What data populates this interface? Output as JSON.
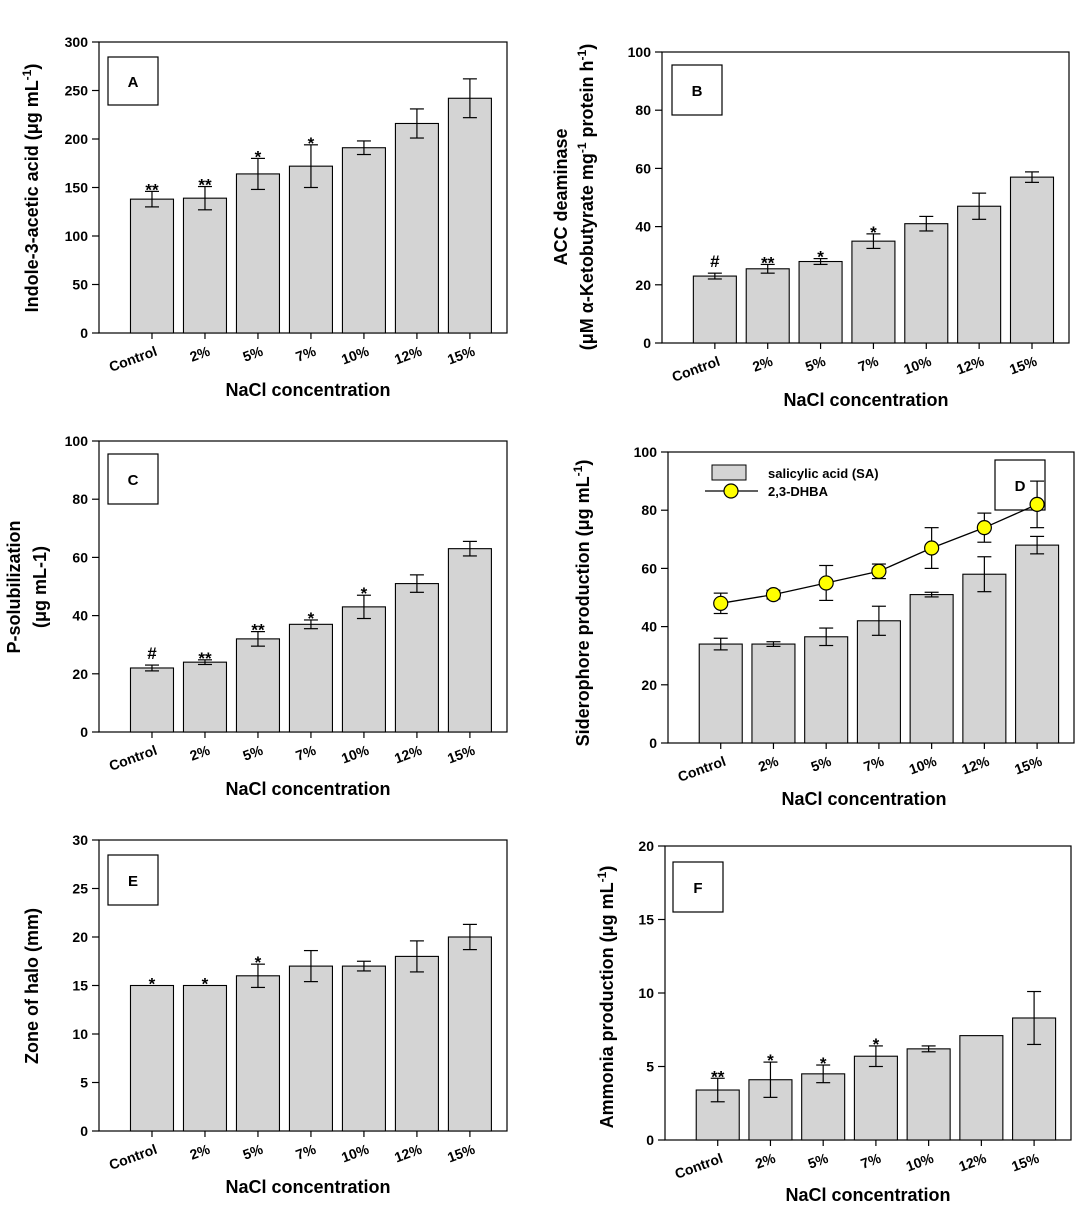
{
  "figure": {
    "categories": [
      "Control",
      "2%",
      "5%",
      "7%",
      "10%",
      "12%",
      "15%"
    ],
    "xlabel": "NaCl concentration"
  },
  "colors": {
    "bar_fill": "#d4d4d4",
    "bar_stroke": "#000000",
    "marker_fill": "#ffff00"
  },
  "chart_data": [
    {
      "id": "A",
      "type": "bar",
      "label": "A",
      "ylabel": "Indole-3-acetic acid (μg mL-1)",
      "ylabel_parts": {
        "main": "Indole-3-acetic acid (μg mL",
        "sup": "-1",
        "tail": ")"
      },
      "xlabel": "NaCl concentration",
      "categories": [
        "Control",
        "2%",
        "5%",
        "7%",
        "10%",
        "12%",
        "15%"
      ],
      "ylim": [
        0,
        300
      ],
      "yticks": [
        0,
        50,
        100,
        150,
        200,
        250,
        300
      ],
      "values": [
        138,
        139,
        164,
        172,
        191,
        216,
        242
      ],
      "errors": [
        8,
        12,
        16,
        22,
        7,
        15,
        20
      ],
      "significance": [
        "**",
        "**",
        "*",
        "*",
        "",
        "",
        ""
      ]
    },
    {
      "id": "B",
      "type": "bar",
      "label": "B",
      "ylabel": "ACC deaminase (μM α-Ketobutyrate mg-1 protein h-1)",
      "ylabel_lines": [
        "ACC deaminase",
        "(μM α-Ketobutyrate mg-1 protein h-1)"
      ],
      "ylabel_parts2": {
        "a": "(μM α-Ketobutyrate mg",
        "sup1": "-1",
        "b": " protein h",
        "sup2": "-1",
        "c": ")"
      },
      "xlabel": "NaCl concentration",
      "categories": [
        "Control",
        "2%",
        "5%",
        "7%",
        "10%",
        "12%",
        "15%"
      ],
      "ylim": [
        0,
        100
      ],
      "yticks": [
        0,
        20,
        40,
        60,
        80,
        100
      ],
      "values": [
        23,
        25.5,
        28,
        35,
        41,
        47,
        57
      ],
      "errors": [
        1,
        1.5,
        1,
        2.5,
        2.5,
        4.5,
        1.8
      ],
      "significance": [
        "#",
        "**",
        "*",
        "*",
        "",
        "",
        ""
      ]
    },
    {
      "id": "C",
      "type": "bar",
      "label": "C",
      "ylabel": "P-solubilization (μg mL-1)",
      "ylabel_lines": [
        "P-solubilization",
        "(μg mL-1)"
      ],
      "xlabel": "NaCl concentration",
      "categories": [
        "Control",
        "2%",
        "5%",
        "7%",
        "10%",
        "12%",
        "15%"
      ],
      "ylim": [
        0,
        100
      ],
      "yticks": [
        0,
        20,
        40,
        60,
        80,
        100
      ],
      "values": [
        22,
        24,
        32,
        37,
        43,
        51,
        63
      ],
      "errors": [
        1,
        0.8,
        2.5,
        1.5,
        4,
        3,
        2.5
      ],
      "significance": [
        "#",
        "**",
        "**",
        "*",
        "*",
        "",
        ""
      ]
    },
    {
      "id": "D",
      "type": "bar+line",
      "label": "D",
      "ylabel": "Siderophore production (μg mL-1)",
      "ylabel_parts": {
        "main": "Siderophore production (μg mL",
        "sup": "-1",
        "tail": ")"
      },
      "xlabel": "NaCl concentration",
      "categories": [
        "Control",
        "2%",
        "5%",
        "7%",
        "10%",
        "12%",
        "15%"
      ],
      "ylim": [
        0,
        100
      ],
      "yticks": [
        0,
        20,
        40,
        60,
        80,
        100
      ],
      "legend": {
        "position": "top-left",
        "bar_label": "salicylic acid (SA)",
        "line_label": "2,3-DHBA"
      },
      "series": [
        {
          "name": "salicylic acid (SA)",
          "type": "bar",
          "values": [
            34,
            34,
            36.5,
            42,
            51,
            58,
            68
          ],
          "errors": [
            2,
            0.8,
            3,
            5,
            0.8,
            6,
            3
          ]
        },
        {
          "name": "2,3-DHBA",
          "type": "line",
          "values": [
            48,
            51,
            55,
            59,
            67,
            74,
            82
          ],
          "errors": [
            3.5,
            1.5,
            6,
            2.5,
            7,
            5,
            8
          ]
        }
      ],
      "significance": [
        "",
        "",
        "",
        "",
        "",
        "",
        ""
      ]
    },
    {
      "id": "E",
      "type": "bar",
      "label": "E",
      "ylabel": "Zone of halo (mm)",
      "xlabel": "NaCl concentration",
      "categories": [
        "Control",
        "2%",
        "5%",
        "7%",
        "10%",
        "12%",
        "15%"
      ],
      "ylim": [
        0,
        30
      ],
      "yticks": [
        0,
        5,
        10,
        15,
        20,
        25,
        30
      ],
      "values": [
        15,
        15,
        16,
        17,
        17,
        18,
        20
      ],
      "errors": [
        0,
        0,
        1.2,
        1.6,
        0.5,
        1.6,
        1.3
      ],
      "significance": [
        "*",
        "*",
        "*",
        "",
        "",
        "",
        ""
      ]
    },
    {
      "id": "F",
      "type": "bar",
      "label": "F",
      "ylabel": "Ammonia production (μg mL-1)",
      "ylabel_parts": {
        "main": "Ammonia production (μg mL",
        "sup": "-1",
        "tail": ")"
      },
      "xlabel": "NaCl concentration",
      "categories": [
        "Control",
        "2%",
        "5%",
        "7%",
        "10%",
        "12%",
        "15%"
      ],
      "ylim": [
        0,
        20
      ],
      "yticks": [
        0,
        5,
        10,
        15,
        20
      ],
      "values": [
        3.4,
        4.1,
        4.5,
        5.7,
        6.2,
        7.1,
        8.3
      ],
      "errors": [
        0.8,
        1.2,
        0.6,
        0.7,
        0.2,
        0,
        1.8
      ],
      "significance": [
        "**",
        "*",
        "*",
        "*",
        "",
        "",
        ""
      ]
    }
  ]
}
